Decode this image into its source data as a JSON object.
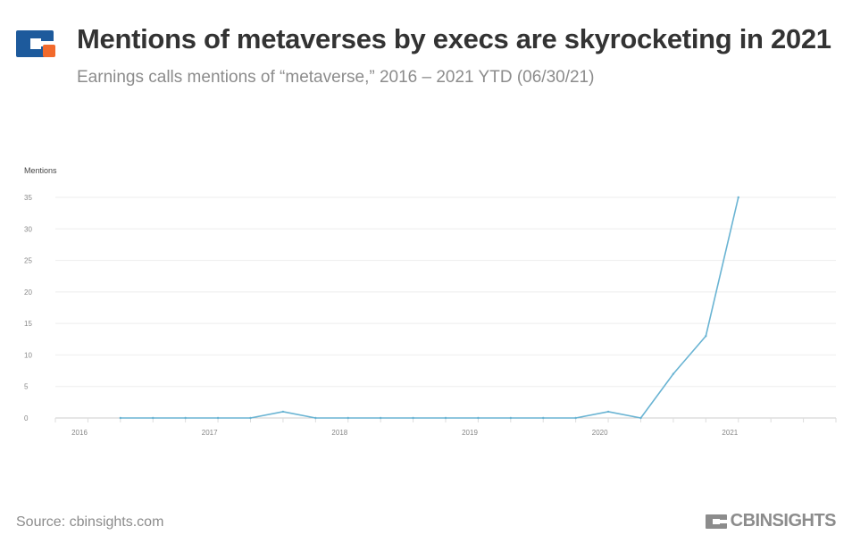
{
  "header": {
    "title": "Mentions of metaverses by execs are skyrocketing in 2021",
    "subtitle": "Earnings calls mentions of “metaverse,” 2016 – 2021 YTD (06/30/21)"
  },
  "footer": {
    "source": "Source: cbinsights.com",
    "brand": "CBINSIGHTS"
  },
  "colors": {
    "line": "#6ab4d3",
    "grid": "#eeeeee",
    "axis": "#cccccc",
    "title": "#333333",
    "muted": "#8c8c8c",
    "logo_blue": "#1d5a9c",
    "logo_orange": "#f26a2c"
  },
  "chart_data": {
    "type": "line",
    "title": "Mentions of metaverses by execs are skyrocketing in 2021",
    "ylabel": "Mentions",
    "xlabel": "",
    "ylim": [
      0,
      35
    ],
    "yticks": [
      0,
      5,
      10,
      15,
      20,
      25,
      30,
      35
    ],
    "xlim": [
      2016.0,
      2022.0
    ],
    "xticks": [
      {
        "label": "2016",
        "value": 2016.0
      },
      {
        "label": "2017",
        "value": 2017.0
      },
      {
        "label": "2018",
        "value": 2018.0
      },
      {
        "label": "2019",
        "value": 2019.0
      },
      {
        "label": "2020",
        "value": 2020.0
      },
      {
        "label": "2021",
        "value": 2021.0
      }
    ],
    "series": [
      {
        "name": "Mentions",
        "x": [
          2016.5,
          2016.75,
          2017.0,
          2017.25,
          2017.5,
          2017.75,
          2018.0,
          2018.25,
          2018.5,
          2018.75,
          2019.0,
          2019.25,
          2019.5,
          2019.75,
          2020.0,
          2020.25,
          2020.5,
          2020.75,
          2021.0,
          2021.25
        ],
        "values": [
          0,
          0,
          0,
          0,
          0,
          1,
          0,
          0,
          0,
          0,
          0,
          0,
          0,
          0,
          0,
          1,
          0,
          7,
          13,
          35
        ]
      }
    ]
  }
}
